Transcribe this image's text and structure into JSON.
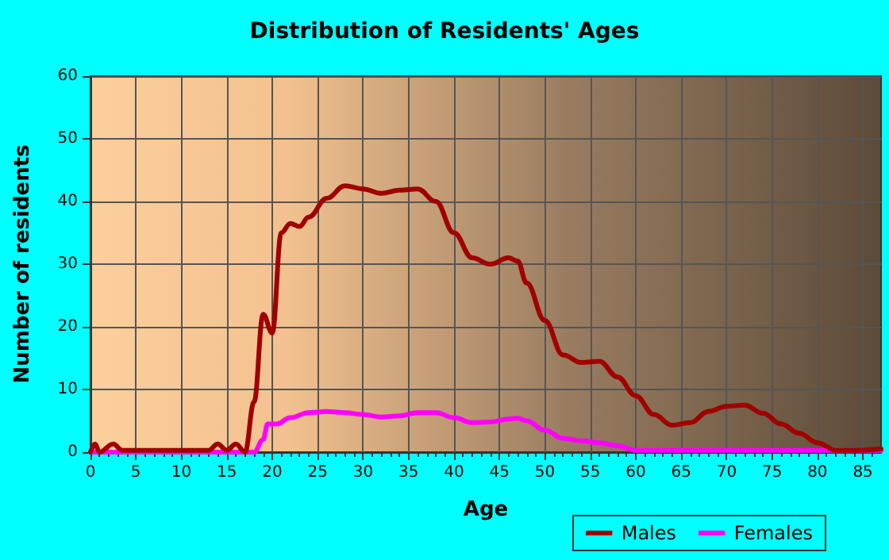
{
  "chart_data": {
    "type": "line",
    "title": "Distribution of Residents' Ages",
    "xlabel": "Age",
    "ylabel": "Number of residents",
    "xlim": [
      0,
      87
    ],
    "xticks": [
      0,
      5,
      10,
      15,
      20,
      25,
      30,
      35,
      40,
      45,
      50,
      55,
      60,
      65,
      70,
      75,
      80,
      85
    ],
    "ylim": [
      0,
      60
    ],
    "yticks": [
      0,
      10,
      20,
      30,
      40,
      50,
      60
    ],
    "grid": true,
    "legend": "bottom right",
    "marker": "none",
    "line_style": "solid",
    "series": [
      {
        "name": "Males",
        "color": "#a00000",
        "x": [
          0,
          0.5,
          1,
          2.5,
          3.5,
          5,
          8,
          10,
          13,
          14,
          15,
          16,
          17,
          18,
          19,
          20,
          21,
          22,
          23,
          24,
          26,
          28,
          30,
          32,
          34,
          36,
          38,
          40,
          42,
          44,
          46,
          47,
          48,
          50,
          52,
          54,
          56,
          58,
          60,
          62,
          64,
          66,
          68,
          70,
          72,
          74,
          76,
          78,
          80,
          82,
          84,
          87
        ],
        "values": [
          0,
          1.3,
          0,
          1.3,
          0.3,
          0.3,
          0.3,
          0.3,
          0.3,
          1.3,
          0.3,
          1.3,
          0,
          8,
          22,
          19,
          35,
          36.5,
          36,
          37.5,
          40.5,
          42.5,
          42,
          41.3,
          41.8,
          42,
          40,
          35,
          31,
          30,
          31,
          30.5,
          27,
          21,
          15.5,
          14.3,
          14.5,
          12,
          9,
          6,
          4.3,
          4.7,
          6.5,
          7.3,
          7.5,
          6.2,
          4.5,
          3,
          1.5,
          0.3,
          0.3,
          0.5
        ]
      },
      {
        "name": "Females",
        "color": "#ff00ff",
        "x": [
          0,
          5,
          10,
          15,
          18,
          19,
          19.5,
          20.5,
          22,
          24,
          26,
          28,
          30,
          32,
          34,
          36,
          38,
          40,
          42,
          44,
          46,
          47,
          48,
          50,
          52,
          54,
          56,
          58,
          60,
          62,
          70,
          80,
          87
        ],
        "values": [
          0,
          0,
          0,
          0,
          0,
          2,
          4.5,
          4.5,
          5.5,
          6.3,
          6.5,
          6.3,
          6,
          5.6,
          5.8,
          6.3,
          6.3,
          5.5,
          4.7,
          4.8,
          5.3,
          5.4,
          5,
          3.5,
          2.2,
          1.8,
          1.5,
          1,
          0.3,
          0.3,
          0.3,
          0.3,
          0.3
        ]
      }
    ]
  }
}
